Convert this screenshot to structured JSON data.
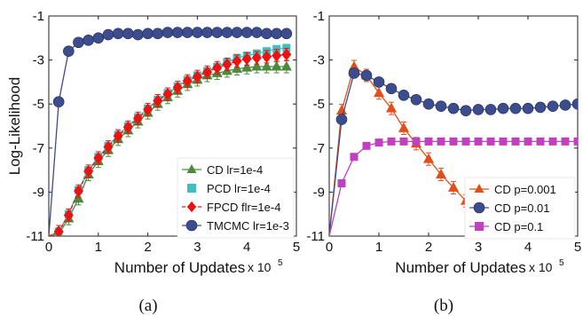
{
  "chart_data": [
    {
      "type": "line",
      "panel": "(a)",
      "ylabel": "Log-Likelihood",
      "xlabel": "Number of Updates",
      "x_multiplier": "x 10",
      "x_exponent": "5",
      "caption": "(a)",
      "xlim": [
        0,
        5
      ],
      "ylim": [
        -11,
        -1
      ],
      "xticks": [
        "0",
        "1",
        "2",
        "3",
        "4",
        "5"
      ],
      "yticks": [
        "-11",
        "-9",
        "-7",
        "-5",
        "-3",
        "-1"
      ],
      "grid": false,
      "legend_position": "bottom-right",
      "x": [
        0.2,
        0.4,
        0.6,
        0.8,
        1.0,
        1.2,
        1.4,
        1.6,
        1.8,
        2.0,
        2.2,
        2.4,
        2.6,
        2.8,
        3.0,
        3.2,
        3.4,
        3.6,
        3.8,
        4.0,
        4.2,
        4.4,
        4.6,
        4.8
      ],
      "series": [
        {
          "name": "CD lr=1e-4",
          "color": "#4c8a3c",
          "marker": "triangle",
          "values": [
            -10.9,
            -10.2,
            -9.3,
            -8.2,
            -7.6,
            -7.1,
            -6.6,
            -6.2,
            -5.8,
            -5.4,
            -5.0,
            -4.7,
            -4.4,
            -4.1,
            -3.9,
            -3.7,
            -3.6,
            -3.5,
            -3.4,
            -3.35,
            -3.3,
            -3.3,
            -3.3,
            -3.3
          ]
        },
        {
          "name": "PCD lr=1e-4",
          "color": "#3fbfbf",
          "marker": "square",
          "values": [
            -10.8,
            -10.0,
            -8.9,
            -8.0,
            -7.4,
            -6.9,
            -6.4,
            -6.0,
            -5.6,
            -5.2,
            -4.8,
            -4.5,
            -4.2,
            -3.9,
            -3.7,
            -3.5,
            -3.3,
            -3.1,
            -2.9,
            -2.8,
            -2.7,
            -2.6,
            -2.5,
            -2.45
          ]
        },
        {
          "name": "FPCD flr=1e-4",
          "color": "#ee1111",
          "marker": "diamond",
          "values": [
            -10.8,
            -10.05,
            -8.95,
            -8.05,
            -7.45,
            -6.95,
            -6.45,
            -6.05,
            -5.65,
            -5.25,
            -4.85,
            -4.55,
            -4.25,
            -3.95,
            -3.75,
            -3.55,
            -3.35,
            -3.2,
            -3.05,
            -2.95,
            -2.9,
            -2.85,
            -2.8,
            -2.75
          ]
        },
        {
          "name": "TMCMC lr=1e-3",
          "color": "#3c4c8c",
          "marker": "circle",
          "values": [
            -4.9,
            -2.6,
            -2.2,
            -2.1,
            -2.0,
            -1.85,
            -1.8,
            -1.8,
            -1.85,
            -1.8,
            -1.8,
            -1.75,
            -1.75,
            -1.75,
            -1.75,
            -1.75,
            -1.75,
            -1.75,
            -1.75,
            -1.75,
            -1.75,
            -1.8,
            -1.8,
            -1.8
          ]
        }
      ]
    },
    {
      "type": "line",
      "panel": "(b)",
      "xlabel": "Number of Updates",
      "x_multiplier": "x 10",
      "x_exponent": "5",
      "caption": "(b)",
      "xlim": [
        0,
        5
      ],
      "ylim": [
        -11,
        -1
      ],
      "xticks": [
        "0",
        "1",
        "2",
        "3",
        "4",
        "5"
      ],
      "yticks": [
        "-11",
        "-9",
        "-7",
        "-5",
        "-3",
        "-1"
      ],
      "grid": false,
      "legend_position": "bottom-right",
      "series": [
        {
          "name": "CD p=0.001",
          "color": "#e0501c",
          "marker": "triangle",
          "x": [
            0.25,
            0.5,
            0.75,
            1.0,
            1.25,
            1.5,
            1.75,
            2.0,
            2.25,
            2.5,
            2.75,
            3.0,
            3.25,
            3.5
          ],
          "values": [
            -5.3,
            -3.3,
            -3.7,
            -4.5,
            -5.2,
            -6.1,
            -6.8,
            -7.5,
            -8.2,
            -8.8,
            -9.4,
            -9.9,
            -10.4,
            -10.8
          ]
        },
        {
          "name": "CD p=0.01",
          "color": "#3c4c8c",
          "marker": "circle",
          "x": [
            0.25,
            0.5,
            0.75,
            1.0,
            1.25,
            1.5,
            1.75,
            2.0,
            2.25,
            2.5,
            2.75,
            3.0,
            3.25,
            3.5,
            3.75,
            4.0,
            4.25,
            4.5,
            4.75,
            5.0
          ],
          "values": [
            -5.7,
            -3.6,
            -3.7,
            -4.0,
            -4.3,
            -4.6,
            -4.8,
            -5.0,
            -5.1,
            -5.2,
            -5.3,
            -5.25,
            -5.25,
            -5.2,
            -5.2,
            -5.2,
            -5.15,
            -5.1,
            -5.05,
            -5.0
          ]
        },
        {
          "name": "CD p=0.1",
          "color": "#c040c0",
          "marker": "square",
          "x": [
            0.25,
            0.5,
            0.75,
            1.0,
            1.25,
            1.5,
            1.75,
            2.0,
            2.25,
            2.5,
            2.75,
            3.0,
            3.25,
            3.5,
            3.75,
            4.0,
            4.25,
            4.5,
            4.75,
            5.0
          ],
          "values": [
            -8.6,
            -7.4,
            -6.9,
            -6.75,
            -6.7,
            -6.7,
            -6.7,
            -6.7,
            -6.7,
            -6.7,
            -6.7,
            -6.7,
            -6.7,
            -6.7,
            -6.7,
            -6.7,
            -6.7,
            -6.7,
            -6.7,
            -6.7
          ]
        }
      ]
    }
  ]
}
